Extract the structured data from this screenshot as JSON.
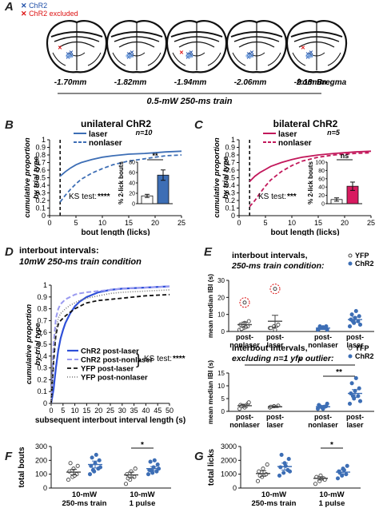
{
  "panels": {
    "A": {
      "letter": "A",
      "legend": [
        {
          "label": "ChR2",
          "color": "#1f4fa8",
          "marker": "x"
        },
        {
          "label": "ChR2 excluded",
          "color": "#d11",
          "marker": "x"
        }
      ],
      "sections": [
        {
          "label": "-1.70mm"
        },
        {
          "label": "-1.82mm"
        },
        {
          "label": "-1.94mm"
        },
        {
          "label": "-2.06mm"
        },
        {
          "label": "-2.18mm"
        }
      ],
      "bregma_suffix": "from Bregma",
      "train_label": "0.5-mW 250-ms train"
    },
    "B": {
      "letter": "B",
      "title": "unilateral ChR2",
      "n": "n=10",
      "ks": "KS test:",
      "ks_stars": "****",
      "sig": "**"
    },
    "C": {
      "letter": "C",
      "title": "bilateral ChR2",
      "n": "n=5",
      "ks": "KS test:",
      "ks_stars": "***",
      "sig": "ns"
    },
    "D": {
      "letter": "D",
      "title1": "interbout intervals:",
      "title2": "10mW 250-ms train condition",
      "ks": "KS test:",
      "ks_stars": "****"
    },
    "E": {
      "letter": "E",
      "top_title1": "interbout intervals,",
      "top_title2": "250-ms train condition:",
      "bot_title1": "interbout intervals,",
      "bot_title2": "excluding n=1 yfp outlier:",
      "legend": [
        {
          "label": "YFP"
        },
        {
          "label": "ChR2"
        }
      ],
      "sig_star": "*",
      "sig_star2": "**"
    },
    "F": {
      "letter": "F",
      "sig": "*"
    },
    "G": {
      "letter": "G",
      "sig": "*"
    }
  },
  "chart_data": [
    {
      "id": "B",
      "type": "line",
      "title": "unilateral ChR2",
      "xlabel": "bout length (licks)",
      "ylabel": "cumulative proportion by trial type",
      "xlim": [
        0,
        25
      ],
      "ylim": [
        0,
        1
      ],
      "xticks": [
        0,
        5,
        10,
        15,
        20,
        25
      ],
      "yticks": [
        0,
        0.1,
        0.2,
        0.3,
        0.4,
        0.5,
        0.6,
        0.7,
        0.8,
        0.9,
        1
      ],
      "vline_x": 2,
      "series": [
        {
          "name": "laser",
          "color": "#3d6eb5",
          "dash": false,
          "x": [
            2,
            3,
            4,
            5,
            6,
            8,
            10,
            12,
            15,
            18,
            20,
            22,
            25
          ],
          "y": [
            0.52,
            0.58,
            0.63,
            0.67,
            0.7,
            0.74,
            0.77,
            0.79,
            0.81,
            0.82,
            0.83,
            0.84,
            0.85
          ]
        },
        {
          "name": "nonlaser",
          "color": "#3d6eb5",
          "dash": true,
          "x": [
            2,
            3,
            4,
            5,
            6,
            8,
            10,
            12,
            15,
            18,
            20,
            22,
            25
          ],
          "y": [
            0.18,
            0.27,
            0.35,
            0.42,
            0.48,
            0.56,
            0.62,
            0.67,
            0.72,
            0.75,
            0.77,
            0.79,
            0.8
          ]
        }
      ],
      "inset": {
        "type": "bar",
        "ylabel": "% 2-lick bouts",
        "ylim": [
          0,
          80
        ],
        "yticks": [
          0,
          20,
          40,
          60,
          80
        ],
        "categories": [
          "nonlaser",
          "laser"
        ],
        "values": [
          15,
          55
        ],
        "errors": [
          3,
          10
        ],
        "colors": [
          "#ffffff",
          "#3d6eb5"
        ],
        "sig": "**"
      }
    },
    {
      "id": "C",
      "type": "line",
      "title": "bilateral ChR2",
      "xlabel": "bout length (licks)",
      "ylabel": "cumulative proportion by trial type",
      "xlim": [
        0,
        25
      ],
      "ylim": [
        0,
        1
      ],
      "xticks": [
        0,
        5,
        10,
        15,
        20,
        25
      ],
      "yticks": [
        0,
        0.1,
        0.2,
        0.3,
        0.4,
        0.5,
        0.6,
        0.7,
        0.8,
        0.9,
        1
      ],
      "vline_x": 2,
      "series": [
        {
          "name": "laser",
          "color": "#c2185b",
          "dash": false,
          "x": [
            2,
            3,
            4,
            5,
            6,
            8,
            10,
            12,
            15,
            18,
            20,
            22,
            25
          ],
          "y": [
            0.45,
            0.52,
            0.57,
            0.61,
            0.65,
            0.7,
            0.74,
            0.77,
            0.8,
            0.82,
            0.83,
            0.84,
            0.85
          ]
        },
        {
          "name": "nonlaser",
          "color": "#c2185b",
          "dash": true,
          "x": [
            2,
            3,
            4,
            5,
            6,
            8,
            10,
            12,
            15,
            18,
            20,
            22,
            25
          ],
          "y": [
            0.12,
            0.2,
            0.3,
            0.39,
            0.47,
            0.58,
            0.66,
            0.72,
            0.77,
            0.8,
            0.81,
            0.82,
            0.83
          ]
        }
      ],
      "inset": {
        "type": "bar",
        "ylabel": "% 2-lick bouts",
        "ylim": [
          0,
          100
        ],
        "yticks": [
          0,
          20,
          40,
          60,
          80,
          100
        ],
        "categories": [
          "nonlaser",
          "laser"
        ],
        "values": [
          10,
          42
        ],
        "errors": [
          4,
          10
        ],
        "colors": [
          "#ffffff",
          "#d81b60"
        ],
        "sig": "ns"
      }
    },
    {
      "id": "D",
      "type": "line",
      "xlabel": "subsequent interbout interval length (s)",
      "ylabel": "cumulative proportion by trial type",
      "xlim": [
        0,
        50
      ],
      "ylim": [
        0,
        1
      ],
      "xticks": [
        0,
        5,
        10,
        15,
        20,
        25,
        30,
        35,
        40,
        45,
        50
      ],
      "yticks": [
        0,
        0.1,
        0.2,
        0.3,
        0.4,
        0.5,
        0.6,
        0.7,
        0.8,
        0.9,
        1
      ],
      "series": [
        {
          "name": "ChR2 post-laser",
          "color": "#2e4fd8",
          "dash": "solid",
          "width": 2.2,
          "x": [
            0,
            1,
            2,
            3,
            4,
            5,
            6,
            8,
            10,
            12,
            15,
            20,
            25,
            30,
            40,
            50
          ],
          "y": [
            0,
            0.12,
            0.3,
            0.45,
            0.55,
            0.62,
            0.68,
            0.76,
            0.82,
            0.86,
            0.9,
            0.94,
            0.96,
            0.97,
            0.98,
            0.99
          ]
        },
        {
          "name": "ChR2 post-nonlaser",
          "color": "#9a9af0",
          "dash": "6,3",
          "width": 2,
          "x": [
            0,
            1,
            2,
            3,
            4,
            5,
            6,
            8,
            10,
            12,
            15,
            20,
            25,
            30,
            40,
            50
          ],
          "y": [
            0,
            0.5,
            0.72,
            0.8,
            0.84,
            0.86,
            0.88,
            0.9,
            0.92,
            0.93,
            0.94,
            0.95,
            0.96,
            0.97,
            0.98,
            0.99
          ]
        },
        {
          "name": "YFP post-laser",
          "color": "#111111",
          "dash": "5,3",
          "width": 1.8,
          "x": [
            0,
            1,
            2,
            3,
            4,
            5,
            6,
            8,
            10,
            12,
            15,
            20,
            25,
            30,
            40,
            50
          ],
          "y": [
            0,
            0.35,
            0.58,
            0.67,
            0.7,
            0.72,
            0.74,
            0.77,
            0.8,
            0.82,
            0.85,
            0.87,
            0.88,
            0.89,
            0.91,
            0.92
          ]
        },
        {
          "name": "YFP post-nonlaser",
          "color": "#777777",
          "dash": "1,2",
          "width": 1.6,
          "x": [
            0,
            1,
            2,
            3,
            4,
            5,
            6,
            8,
            10,
            12,
            15,
            20,
            25,
            30,
            40,
            50
          ],
          "y": [
            0,
            0.4,
            0.62,
            0.72,
            0.76,
            0.78,
            0.8,
            0.83,
            0.85,
            0.87,
            0.89,
            0.91,
            0.93,
            0.94,
            0.95,
            0.96
          ]
        }
      ]
    },
    {
      "id": "E-top",
      "type": "scatter",
      "ylabel": "mean median IBI (s)",
      "ylim": [
        0,
        30
      ],
      "yticks": [
        0,
        10,
        20,
        30
      ],
      "groups": [
        {
          "label": "post-nonlaser",
          "geno": "YFP",
          "mean": 4,
          "sem": 1.5,
          "points": [
            1,
            2,
            3,
            4,
            5,
            6,
            1.5,
            2.5
          ]
        },
        {
          "label": "post-laser",
          "geno": "YFP",
          "mean": 6,
          "sem": 3.5,
          "points": [
            2,
            3,
            4,
            2,
            1
          ]
        },
        {
          "label": "post-nonlaser",
          "geno": "ChR2",
          "mean": 2,
          "sem": 0.8,
          "points": [
            1,
            2,
            3,
            1.5,
            2.5,
            1,
            3,
            2
          ]
        },
        {
          "label": "post-laser",
          "geno": "ChR2",
          "mean": 7,
          "sem": 1.5,
          "points": [
            3,
            5,
            6,
            7,
            8,
            9,
            10,
            12,
            4,
            6
          ]
        }
      ],
      "outliers": [
        {
          "group": 0,
          "y": 17
        },
        {
          "group": 1,
          "y": 25
        }
      ]
    },
    {
      "id": "E-bottom",
      "type": "scatter",
      "ylabel": "mean median IBI (s)",
      "ylim": [
        0,
        15
      ],
      "yticks": [
        0,
        5,
        10,
        15
      ],
      "groups": [
        {
          "label": "post-nonlaser",
          "geno": "YFP",
          "mean": 2.2,
          "sem": 0.6,
          "points": [
            1,
            2,
            3,
            2.5,
            1.5,
            3.5,
            2
          ]
        },
        {
          "label": "post-laser",
          "geno": "YFP",
          "mean": 1.8,
          "sem": 0.3,
          "points": [
            1.5,
            2,
            2.2,
            1.8
          ]
        },
        {
          "label": "post-nonlaser",
          "geno": "ChR2",
          "mean": 1.8,
          "sem": 0.5,
          "points": [
            1,
            1.5,
            2,
            2.5,
            1,
            3,
            2,
            1.8
          ]
        },
        {
          "label": "post-laser",
          "geno": "ChR2",
          "mean": 7,
          "sem": 1.5,
          "points": [
            3,
            5,
            6,
            7,
            8,
            9,
            11,
            13,
            4,
            6
          ]
        }
      ]
    },
    {
      "id": "F",
      "type": "scatter",
      "ylabel": "total bouts",
      "ylim": [
        0,
        300
      ],
      "yticks": [
        0,
        100,
        200,
        300
      ],
      "categories": [
        "10-mW 250-ms train",
        "10-mW 1 pulse"
      ],
      "groups": [
        {
          "cat": 0,
          "geno": "YFP",
          "mean": 115,
          "sem": 20,
          "points": [
            60,
            80,
            100,
            120,
            140,
            160,
            180,
            90
          ]
        },
        {
          "cat": 0,
          "geno": "ChR2",
          "mean": 170,
          "sem": 25,
          "points": [
            100,
            120,
            140,
            160,
            180,
            200,
            220,
            240,
            150,
            130
          ]
        },
        {
          "cat": 1,
          "geno": "YFP",
          "mean": 95,
          "sem": 20,
          "points": [
            30,
            60,
            80,
            100,
            120,
            140,
            70
          ]
        },
        {
          "cat": 1,
          "geno": "ChR2",
          "mean": 140,
          "sem": 15,
          "points": [
            100,
            110,
            120,
            130,
            150,
            170,
            190,
            200,
            140,
            125
          ]
        }
      ],
      "sig": "*"
    },
    {
      "id": "G",
      "type": "scatter",
      "ylabel": "total licks",
      "ylim": [
        0,
        3000
      ],
      "yticks": [
        0,
        1000,
        2000,
        3000
      ],
      "categories": [
        "10-mW 250-ms train",
        "10-mW 1 pulse"
      ],
      "groups": [
        {
          "cat": 0,
          "geno": "YFP",
          "mean": 1050,
          "sem": 200,
          "points": [
            500,
            800,
            1000,
            1200,
            1400,
            1700,
            900
          ]
        },
        {
          "cat": 0,
          "geno": "ChR2",
          "mean": 1550,
          "sem": 250,
          "points": [
            900,
            1100,
            1300,
            1500,
            1800,
            2100,
            2400,
            1600,
            1200
          ]
        },
        {
          "cat": 1,
          "geno": "YFP",
          "mean": 700,
          "sem": 120,
          "points": [
            300,
            500,
            700,
            800,
            900,
            600
          ]
        },
        {
          "cat": 1,
          "geno": "ChR2",
          "mean": 1150,
          "sem": 150,
          "points": [
            700,
            900,
            1000,
            1200,
            1400,
            1600,
            1100,
            1300
          ]
        }
      ],
      "sig": "*"
    }
  ]
}
